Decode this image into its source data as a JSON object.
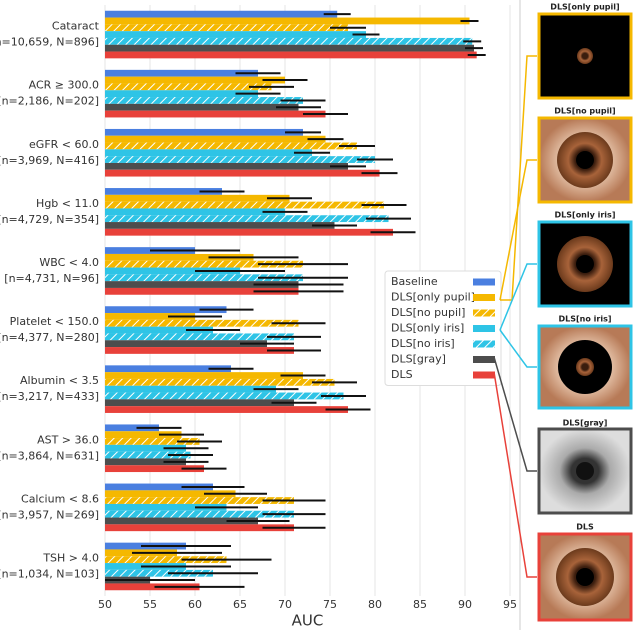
{
  "chart_data": {
    "type": "bar",
    "orientation": "horizontal",
    "categories": [
      "Cataract",
      "ACR ≥ 300.0",
      "eGFR < 60.0",
      "Hgb < 11.0",
      "WBC < 4.0",
      "Platelet < 150.0",
      "Albumin < 3.5",
      "AST > 36.0",
      "Calcium < 8.6",
      "TSH > 4.0"
    ],
    "category_counts": [
      "[n=10,659, N=896]",
      "[n=2,186, N=202]",
      "[n=3,969, N=416]",
      "[n=4,729, N=354]",
      "[n=4,731, N=96]",
      "[n=4,377, N=280]",
      "[n=3,217, N=433]",
      "[n=3,864, N=631]",
      "[n=3,957, N=269]",
      "[n=1,034, N=103]"
    ],
    "series": [
      {
        "name": "Baseline",
        "color": "#4a7fe0",
        "hatch": false,
        "values": [
          75.8,
          67,
          72,
          63,
          60,
          63.5,
          64,
          56,
          62,
          59
        ],
        "errors": [
          1.5,
          2.5,
          2,
          2.5,
          5,
          3,
          2.5,
          2.5,
          3.5,
          5
        ]
      },
      {
        "name": "DLS[only pupil]",
        "color": "#f5b800",
        "hatch": false,
        "values": [
          90.5,
          70,
          74.5,
          70.5,
          66.5,
          60,
          72,
          58.5,
          64.5,
          58
        ],
        "errors": [
          1,
          2.5,
          2,
          2.5,
          5,
          3,
          2.5,
          2.5,
          3.5,
          5
        ]
      },
      {
        "name": "DLS[no pupil]",
        "color": "#f5b800",
        "hatch": true,
        "values": [
          77,
          68.5,
          78,
          81,
          72,
          71.5,
          75.5,
          60.5,
          71,
          63.5
        ],
        "errors": [
          2,
          2.5,
          2,
          2.5,
          5,
          3,
          2.5,
          2.5,
          3.5,
          5
        ]
      },
      {
        "name": "DLS[only iris]",
        "color": "#2ec4e6",
        "hatch": false,
        "values": [
          79,
          67,
          73,
          70,
          65,
          62,
          69,
          59,
          63.5,
          59
        ],
        "errors": [
          1.5,
          2.5,
          2,
          2.5,
          5,
          3,
          2.5,
          2.5,
          3.5,
          5
        ]
      },
      {
        "name": "DLS[no iris]",
        "color": "#2ec4e6",
        "hatch": true,
        "values": [
          90.8,
          72,
          80,
          81.5,
          72,
          71,
          76.5,
          59.5,
          71,
          62
        ],
        "errors": [
          1,
          2.5,
          2,
          2.5,
          5,
          3,
          2.5,
          2.5,
          3.5,
          5
        ]
      },
      {
        "name": "DLS[gray]",
        "color": "#4d4d4d",
        "hatch": false,
        "values": [
          91,
          71.5,
          77,
          75.5,
          71.5,
          68,
          71,
          59,
          67,
          55
        ],
        "errors": [
          1,
          2.5,
          2,
          2.5,
          5,
          3,
          2.5,
          2.5,
          3.5,
          5
        ]
      },
      {
        "name": "DLS",
        "color": "#e8413a",
        "hatch": false,
        "values": [
          91.3,
          74.5,
          80.5,
          82,
          71.5,
          71,
          77,
          61,
          71,
          60.5
        ],
        "errors": [
          1,
          2.5,
          2,
          2.5,
          5,
          3,
          2.5,
          2.5,
          3.5,
          5
        ]
      }
    ],
    "xlabel": "AUC",
    "xlim": [
      50,
      95
    ],
    "xticks": [
      50,
      55,
      60,
      65,
      70,
      75,
      80,
      85,
      90,
      95
    ],
    "grid": true,
    "legend": "right"
  },
  "panels": [
    {
      "title": "DLS[only pupil]"
    },
    {
      "title": "DLS[no pupil]"
    },
    {
      "title": "DLS[only iris]"
    },
    {
      "title": "DLS[no iris]"
    },
    {
      "title": "DLS[gray]"
    },
    {
      "title": "DLS"
    }
  ]
}
